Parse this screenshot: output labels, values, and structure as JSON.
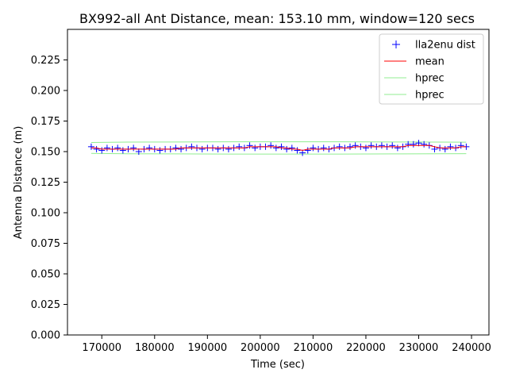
{
  "chart_data": {
    "type": "scatter",
    "title": "BX992-all Ant Distance, mean: 153.10 mm, window=120 secs",
    "xlabel": "Time (sec)",
    "ylabel": "Antenna Distance (m)",
    "xlim": [
      163500,
      243300
    ],
    "ylim": [
      0.0,
      0.25
    ],
    "xticks": [
      "170000",
      "180000",
      "190000",
      "200000",
      "210000",
      "220000",
      "230000",
      "240000"
    ],
    "yticks": [
      "0.000",
      "0.025",
      "0.050",
      "0.075",
      "0.100",
      "0.125",
      "0.150",
      "0.175",
      "0.200",
      "0.225"
    ],
    "grid": false,
    "legend_position": "top-right",
    "colors": {
      "dist": "#0000ff",
      "mean": "#ff0000",
      "hprec": "#90ee90",
      "axes": "#000000"
    },
    "series": [
      {
        "name": "lla2enu dist",
        "marker": "+",
        "x": [
          168000,
          169000,
          170000,
          171000,
          172000,
          173000,
          174000,
          175000,
          176000,
          177000,
          178000,
          179000,
          180000,
          181000,
          182000,
          183000,
          184000,
          185000,
          186000,
          187000,
          188000,
          189000,
          190000,
          191000,
          192000,
          193000,
          194000,
          195000,
          196000,
          197000,
          198000,
          199000,
          200000,
          201000,
          202000,
          203000,
          204000,
          205000,
          206000,
          207000,
          208000,
          209000,
          210000,
          211000,
          212000,
          213000,
          214000,
          215000,
          216000,
          217000,
          218000,
          219000,
          220000,
          221000,
          222000,
          223000,
          224000,
          225000,
          226000,
          227000,
          228000,
          229000,
          230000,
          231000,
          232000,
          233000,
          234000,
          235000,
          236000,
          237000,
          238000,
          239000
        ],
        "y": [
          0.154,
          0.152,
          0.151,
          0.153,
          0.152,
          0.153,
          0.151,
          0.152,
          0.153,
          0.15,
          0.152,
          0.153,
          0.152,
          0.151,
          0.152,
          0.152,
          0.153,
          0.152,
          0.153,
          0.154,
          0.153,
          0.152,
          0.153,
          0.153,
          0.152,
          0.153,
          0.152,
          0.153,
          0.154,
          0.153,
          0.155,
          0.153,
          0.154,
          0.154,
          0.155,
          0.153,
          0.154,
          0.152,
          0.153,
          0.151,
          0.149,
          0.151,
          0.153,
          0.152,
          0.153,
          0.152,
          0.153,
          0.154,
          0.153,
          0.154,
          0.155,
          0.154,
          0.153,
          0.155,
          0.154,
          0.155,
          0.154,
          0.155,
          0.153,
          0.154,
          0.156,
          0.156,
          0.157,
          0.156,
          0.155,
          0.152,
          0.153,
          0.152,
          0.154,
          0.153,
          0.155,
          0.154
        ]
      },
      {
        "name": "mean",
        "x": [
          168000,
          169000,
          170000,
          171000,
          172000,
          173000,
          174000,
          175000,
          176000,
          177000,
          178000,
          179000,
          180000,
          181000,
          182000,
          183000,
          184000,
          185000,
          186000,
          187000,
          188000,
          189000,
          190000,
          191000,
          192000,
          193000,
          194000,
          195000,
          196000,
          197000,
          198000,
          199000,
          200000,
          201000,
          202000,
          203000,
          204000,
          205000,
          206000,
          207000,
          208000,
          209000,
          210000,
          211000,
          212000,
          213000,
          214000,
          215000,
          216000,
          217000,
          218000,
          219000,
          220000,
          221000,
          222000,
          223000,
          224000,
          225000,
          226000,
          227000,
          228000,
          229000,
          230000,
          231000,
          232000,
          233000,
          234000,
          235000,
          236000,
          237000,
          238000,
          239000
        ],
        "y": [
          0.153,
          0.153,
          0.152,
          0.152,
          0.152,
          0.152,
          0.152,
          0.152,
          0.152,
          0.152,
          0.152,
          0.152,
          0.152,
          0.152,
          0.152,
          0.152,
          0.152,
          0.153,
          0.153,
          0.153,
          0.153,
          0.153,
          0.153,
          0.153,
          0.153,
          0.153,
          0.153,
          0.153,
          0.153,
          0.153,
          0.154,
          0.154,
          0.154,
          0.154,
          0.154,
          0.154,
          0.153,
          0.153,
          0.152,
          0.152,
          0.151,
          0.152,
          0.152,
          0.152,
          0.152,
          0.152,
          0.153,
          0.153,
          0.153,
          0.153,
          0.154,
          0.154,
          0.154,
          0.154,
          0.154,
          0.154,
          0.154,
          0.154,
          0.154,
          0.154,
          0.155,
          0.155,
          0.155,
          0.155,
          0.155,
          0.154,
          0.153,
          0.153,
          0.153,
          0.153,
          0.154,
          0.154
        ]
      },
      {
        "name": "hprec",
        "x": [
          168000,
          175000,
          185000,
          195000,
          205000,
          215000,
          225000,
          233000,
          239000
        ],
        "y": [
          0.1575,
          0.1578,
          0.1579,
          0.158,
          0.158,
          0.158,
          0.1579,
          0.1578,
          0.1577
        ]
      },
      {
        "name": "hprec",
        "x": [
          168000,
          175000,
          185000,
          195000,
          205000,
          215000,
          225000,
          233000,
          239000
        ],
        "y": [
          0.1485,
          0.1482,
          0.1481,
          0.148,
          0.148,
          0.148,
          0.1481,
          0.1482,
          0.1483
        ]
      }
    ]
  }
}
